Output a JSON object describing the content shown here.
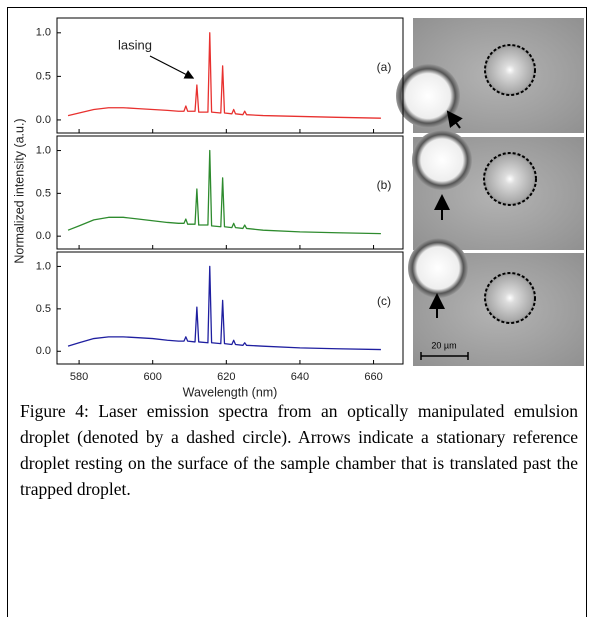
{
  "chart_data": [
    {
      "type": "line",
      "label": "(a)",
      "annotation": "lasing",
      "x": [
        577,
        580,
        584,
        588,
        592,
        596,
        600,
        604,
        607,
        608.5,
        609,
        609.5,
        611.5,
        612,
        612.5,
        615,
        615.5,
        616,
        618.5,
        619,
        619.5,
        621.5,
        622,
        622.5,
        624.5,
        625,
        625.5,
        630,
        640,
        650,
        662
      ],
      "series": [
        {
          "color": "#e8312f",
          "values": [
            0.05,
            0.08,
            0.12,
            0.14,
            0.14,
            0.13,
            0.12,
            0.11,
            0.1,
            0.1,
            0.16,
            0.1,
            0.1,
            0.4,
            0.09,
            0.09,
            1.0,
            0.09,
            0.08,
            0.62,
            0.08,
            0.07,
            0.12,
            0.07,
            0.06,
            0.1,
            0.06,
            0.05,
            0.04,
            0.03,
            0.02
          ]
        }
      ],
      "xlim": [
        574,
        668
      ],
      "xticks": [
        580,
        600,
        620,
        640,
        660
      ],
      "ylim": [
        -0.15,
        1.17
      ],
      "yticks": [
        {
          "value": 0,
          "label": "0.0"
        },
        {
          "value": 0.5,
          "label": "0.5"
        },
        {
          "value": 1,
          "label": "1.0"
        }
      ]
    },
    {
      "type": "line",
      "label": "(b)",
      "ylabel": "Normalized intensity (a.u.)",
      "x": [
        577,
        580,
        584,
        588,
        592,
        596,
        600,
        604,
        607,
        608.5,
        609,
        609.5,
        611.5,
        612,
        612.5,
        615,
        615.5,
        616,
        618.5,
        619,
        619.5,
        621.5,
        622,
        622.5,
        624.5,
        625,
        625.5,
        630,
        640,
        650,
        662
      ],
      "series": [
        {
          "color": "#2e8b2e",
          "values": [
            0.07,
            0.12,
            0.19,
            0.22,
            0.22,
            0.2,
            0.18,
            0.16,
            0.15,
            0.15,
            0.2,
            0.14,
            0.14,
            0.55,
            0.13,
            0.13,
            1.0,
            0.12,
            0.11,
            0.68,
            0.11,
            0.1,
            0.15,
            0.1,
            0.09,
            0.13,
            0.09,
            0.07,
            0.05,
            0.04,
            0.03
          ]
        }
      ],
      "xlim": [
        574,
        668
      ],
      "xticks": [
        580,
        600,
        620,
        640,
        660
      ],
      "ylim": [
        -0.15,
        1.17
      ],
      "yticks": [
        {
          "value": 0,
          "label": "0.0"
        },
        {
          "value": 0.5,
          "label": "0.5"
        },
        {
          "value": 1,
          "label": "1.0"
        }
      ]
    },
    {
      "type": "line",
      "label": "(c)",
      "xlabel": "Wavelength (nm)",
      "x": [
        577,
        580,
        584,
        588,
        592,
        596,
        600,
        604,
        607,
        608.5,
        609,
        609.5,
        611.5,
        612,
        612.5,
        615,
        615.5,
        616,
        618.5,
        619,
        619.5,
        621.5,
        622,
        622.5,
        624.5,
        625,
        625.5,
        630,
        640,
        650,
        662
      ],
      "series": [
        {
          "color": "#1f1fa0",
          "values": [
            0.06,
            0.1,
            0.15,
            0.17,
            0.17,
            0.16,
            0.15,
            0.13,
            0.12,
            0.12,
            0.17,
            0.12,
            0.11,
            0.52,
            0.11,
            0.1,
            1.0,
            0.1,
            0.09,
            0.6,
            0.09,
            0.08,
            0.13,
            0.08,
            0.07,
            0.1,
            0.07,
            0.06,
            0.04,
            0.03,
            0.02
          ]
        }
      ],
      "xlim": [
        574,
        668
      ],
      "xticks": [
        580,
        600,
        620,
        640,
        660
      ],
      "ylim": [
        -0.15,
        1.17
      ],
      "yticks": [
        {
          "value": 0,
          "label": "0.0"
        },
        {
          "value": 0.5,
          "label": "0.5"
        },
        {
          "value": 1,
          "label": "1.0"
        }
      ]
    }
  ],
  "micrograph": {
    "scale_bar": "20 µm"
  },
  "caption": "Figure 4: Laser emission spectra from an optically manipulated emulsion droplet (denoted by a dashed circle). Arrows indicate a stationary reference droplet resting on the surface of the sample chamber that is translated past the trapped droplet."
}
